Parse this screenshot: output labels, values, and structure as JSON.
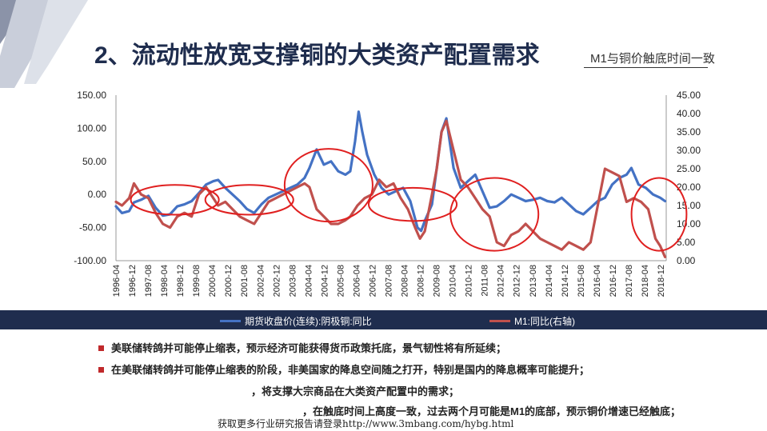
{
  "title": "2、流动性放宽支撑铜的大类资产配置需求",
  "subtitle": "M1与铜价触底时间一致",
  "colors": {
    "copper": "#4472c4",
    "m1": "#c0504d",
    "banner": "#1f2d4e",
    "circle": "#e02020",
    "bullet": "#c0292b"
  },
  "legend": {
    "copper": "期货收盘价(连续):阴极铜:同比",
    "m1": "M1:同比(右轴)"
  },
  "bullets": [
    "美联储转鸽并可能停止缩表，预示经济可能获得货币政策托底，景气韧性将有所延续；",
    "在美联储转鸽并可能停止缩表的阶段，非美国家的降息空间随之打开，特别是国内的降息概率可能提升；",
    "，将支撑大宗商品在大类资产配置中的需求；",
    "，在触底时间上高度一致，过去两个月可能是M1的底部，预示铜价增速已经触底；"
  ],
  "footer": "获取更多行业研究报告请登录http://www.3mbang.com/hybg.html",
  "chart_data": {
    "type": "line",
    "x_ticks": [
      "1996-04",
      "1996-12",
      "1997-08",
      "1998-04",
      "1998-12",
      "1999-08",
      "2000-04",
      "2000-12",
      "2001-08",
      "2002-04",
      "2002-12",
      "2003-08",
      "2004-04",
      "2004-12",
      "2005-08",
      "2006-04",
      "2006-12",
      "2007-08",
      "2008-04",
      "2008-12",
      "2009-08",
      "2010-04",
      "2010-12",
      "2011-08",
      "2012-04",
      "2012-12",
      "2013-08",
      "2014-04",
      "2014-12",
      "2015-08",
      "2016-04",
      "2016-12",
      "2017-08",
      "2018-04",
      "2018-12"
    ],
    "y_left": {
      "min": -100,
      "max": 150,
      "ticks": [
        "-100.00",
        "-50.00",
        "0.00",
        "50.00",
        "100.00",
        "150.00"
      ]
    },
    "y_right": {
      "min": 0,
      "max": 45,
      "ticks": [
        "0.00",
        "5.00",
        "10.00",
        "15.00",
        "20.00",
        "25.00",
        "30.00",
        "35.00",
        "40.00",
        "45.00"
      ]
    },
    "series": [
      {
        "name": "期货收盘价(连续):阴极铜:同比",
        "axis": "left",
        "x": [
          1996.25,
          1996.5,
          1996.8,
          1997.0,
          1997.3,
          1997.6,
          1997.9,
          1998.2,
          1998.5,
          1998.8,
          1999.1,
          1999.4,
          1999.7,
          2000.0,
          2000.3,
          2000.5,
          2000.8,
          2001.1,
          2001.4,
          2001.7,
          2002.0,
          2002.3,
          2002.6,
          2002.9,
          2003.2,
          2003.5,
          2003.8,
          2004.1,
          2004.3,
          2004.6,
          2004.9,
          2005.2,
          2005.5,
          2005.8,
          2006.0,
          2006.2,
          2006.35,
          2006.5,
          2006.7,
          2007.0,
          2007.3,
          2007.6,
          2007.9,
          2008.2,
          2008.5,
          2008.8,
          2008.95,
          2009.1,
          2009.4,
          2009.6,
          2009.8,
          2010.0,
          2010.3,
          2010.6,
          2010.9,
          2011.2,
          2011.5,
          2011.8,
          2012.1,
          2012.4,
          2012.7,
          2013.0,
          2013.3,
          2013.6,
          2013.9,
          2014.2,
          2014.5,
          2014.8,
          2015.1,
          2015.4,
          2015.7,
          2016.0,
          2016.3,
          2016.6,
          2016.9,
          2017.2,
          2017.5,
          2017.7,
          2018.0,
          2018.3,
          2018.6,
          2018.9,
          2019.1
        ],
        "y": [
          -18,
          -28,
          -25,
          -12,
          -8,
          -2,
          -20,
          -32,
          -30,
          -18,
          -15,
          -10,
          2,
          15,
          20,
          22,
          10,
          0,
          -10,
          -22,
          -28,
          -15,
          -5,
          0,
          5,
          10,
          15,
          25,
          40,
          68,
          45,
          50,
          35,
          30,
          35,
          80,
          125,
          95,
          60,
          30,
          10,
          0,
          5,
          10,
          -10,
          -50,
          -55,
          -40,
          -15,
          40,
          95,
          115,
          40,
          10,
          20,
          30,
          5,
          -20,
          -18,
          -10,
          0,
          -5,
          -10,
          -8,
          -5,
          -10,
          -12,
          -5,
          -15,
          -25,
          -30,
          -20,
          -10,
          -5,
          15,
          25,
          30,
          40,
          15,
          10,
          0,
          -5,
          -10
        ]
      },
      {
        "name": "M1:同比(右轴)",
        "axis": "right",
        "x": [
          1996.25,
          1996.5,
          1996.8,
          1997.0,
          1997.3,
          1997.6,
          1997.9,
          1998.2,
          1998.5,
          1998.8,
          1999.1,
          1999.4,
          1999.7,
          2000.0,
          2000.3,
          2000.5,
          2000.8,
          2001.1,
          2001.4,
          2001.7,
          2002.0,
          2002.3,
          2002.6,
          2002.9,
          2003.2,
          2003.5,
          2003.8,
          2004.1,
          2004.3,
          2004.6,
          2004.9,
          2005.2,
          2005.5,
          2005.8,
          2006.0,
          2006.3,
          2006.6,
          2006.9,
          2007.2,
          2007.5,
          2007.8,
          2008.1,
          2008.4,
          2008.7,
          2008.9,
          2009.1,
          2009.4,
          2009.6,
          2009.8,
          2010.0,
          2010.3,
          2010.6,
          2010.9,
          2011.2,
          2011.5,
          2011.8,
          2012.1,
          2012.4,
          2012.7,
          2013.0,
          2013.3,
          2013.6,
          2013.9,
          2014.2,
          2014.5,
          2014.8,
          2015.1,
          2015.4,
          2015.7,
          2016.0,
          2016.3,
          2016.6,
          2016.9,
          2017.2,
          2017.5,
          2017.8,
          2018.1,
          2018.4,
          2018.7,
          2018.9,
          2019.1
        ],
        "y": [
          16,
          15,
          17,
          21,
          18,
          17,
          13,
          10,
          9,
          12,
          13,
          12,
          18,
          20,
          17,
          15,
          16,
          14,
          12,
          11,
          10,
          13,
          16,
          17,
          18,
          19,
          20,
          21,
          20,
          14,
          12,
          10,
          10,
          11,
          12,
          15,
          17,
          18,
          22,
          20,
          21,
          17,
          14,
          9,
          6,
          8,
          18,
          25,
          35,
          38,
          30,
          22,
          20,
          17,
          14,
          12,
          5,
          4,
          7,
          8,
          10,
          8,
          6,
          5,
          4,
          3,
          5,
          4,
          3,
          5,
          15,
          25,
          24,
          23,
          16,
          17,
          16,
          14,
          6,
          4,
          1
        ]
      }
    ]
  }
}
